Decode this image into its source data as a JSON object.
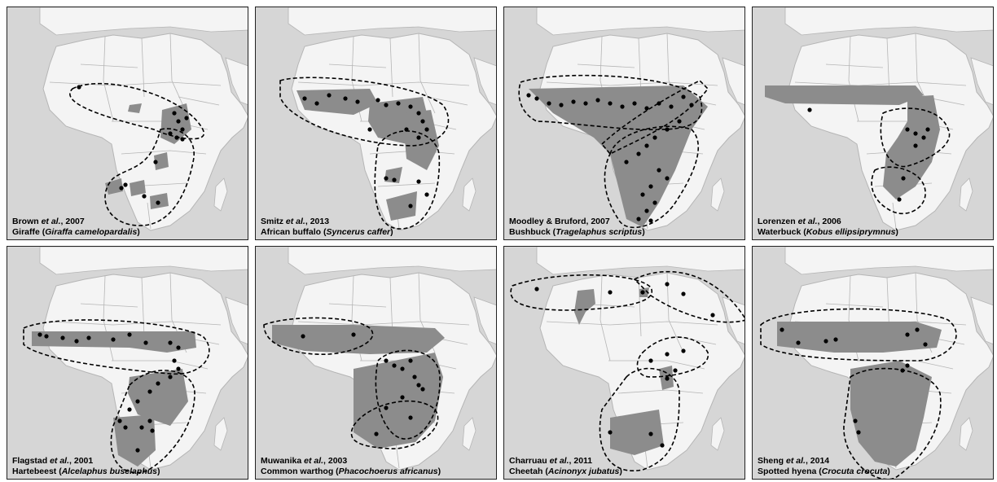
{
  "panels": [
    {
      "citation_authors": "Brown ",
      "citation_etal": "et al.",
      "citation_year": ", 2007",
      "common_name": "Giraffe",
      "scientific_name": "Giraffa camelopardalis"
    },
    {
      "citation_authors": "Smitz ",
      "citation_etal": "et al.",
      "citation_year": ", 2013",
      "common_name": "African buffalo",
      "scientific_name": "Syncerus caffer"
    },
    {
      "citation_authors": "Moodley & Bruford",
      "citation_etal": "",
      "citation_year": ", 2007",
      "common_name": "Bushbuck",
      "scientific_name": "Tragelaphus scriptus"
    },
    {
      "citation_authors": "Lorenzen ",
      "citation_etal": "et al.",
      "citation_year": ", 2006",
      "common_name": "Waterbuck",
      "scientific_name": "Kobus ellipsiprymnus"
    },
    {
      "citation_authors": "Flagstad ",
      "citation_etal": "et al.",
      "citation_year": ", 2001",
      "common_name": "Hartebeest",
      "scientific_name": "Alcelaphus buselaphus"
    },
    {
      "citation_authors": "Muwanika ",
      "citation_etal": "et al.",
      "citation_year": ", 2003",
      "common_name": "Common warthog",
      "scientific_name": "Phacochoerus africanus"
    },
    {
      "citation_authors": "Charruau ",
      "citation_etal": "et al.",
      "citation_year": ", 2011",
      "common_name": "Cheetah",
      "scientific_name": "Acinonyx jubatus"
    },
    {
      "citation_authors": "Sheng ",
      "citation_etal": "et al.",
      "citation_year": ", 2014",
      "common_name": "Spotted hyena",
      "scientific_name": "Crocuta crocuta"
    }
  ],
  "colors": {
    "ocean": "#d6d6d6",
    "land": "#f4f4f4",
    "range": "#8c8c8c",
    "border": "#b5b5b5",
    "sample": "#000000",
    "cluster_line": "#000000"
  }
}
